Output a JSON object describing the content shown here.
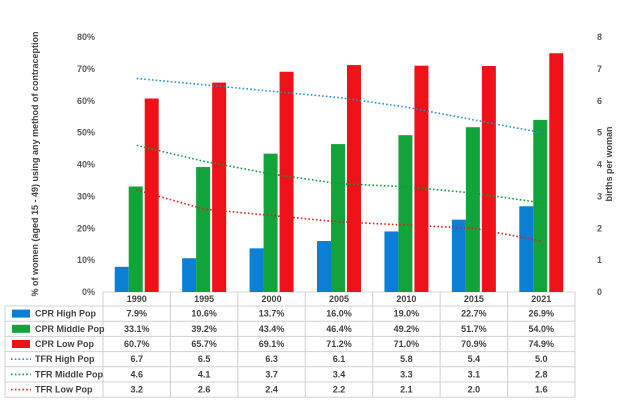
{
  "chart_data": {
    "type": "bar",
    "categories": [
      "1990",
      "1995",
      "2000",
      "2005",
      "2010",
      "2015",
      "2021"
    ],
    "ylabel": "% of women (aged 15 - 49) using any method of contraception",
    "y2label": "births per woman",
    "ylim": [
      0,
      80
    ],
    "y2lim": [
      0,
      8
    ],
    "yticks": [
      "0%",
      "10%",
      "20%",
      "30%",
      "40%",
      "50%",
      "60%",
      "70%",
      "80%"
    ],
    "y2ticks": [
      "0",
      "1",
      "2",
      "3",
      "4",
      "5",
      "6",
      "7",
      "8"
    ],
    "grid": false,
    "legend": "data-table",
    "bar_series": [
      {
        "name": "CPR High Pop",
        "color": "#0b7fd3",
        "values": [
          7.9,
          10.6,
          13.7,
          16.0,
          19.0,
          22.7,
          26.9
        ],
        "labels": [
          "7.9%",
          "10.6%",
          "13.7%",
          "16.0%",
          "19.0%",
          "22.7%",
          "26.9%"
        ]
      },
      {
        "name": "CPR Middle Pop",
        "color": "#12a33a",
        "values": [
          33.1,
          39.2,
          43.4,
          46.4,
          49.2,
          51.7,
          54.0
        ],
        "labels": [
          "33.1%",
          "39.2%",
          "43.4%",
          "46.4%",
          "49.2%",
          "51.7%",
          "54.0%"
        ]
      },
      {
        "name": "CPR Low Pop",
        "color": "#ee1118",
        "values": [
          60.7,
          65.7,
          69.1,
          71.2,
          71.0,
          70.9,
          74.9
        ],
        "labels": [
          "60.7%",
          "65.7%",
          "69.1%",
          "71.2%",
          "71.0%",
          "70.9%",
          "74.9%"
        ]
      }
    ],
    "line_series": [
      {
        "name": "TFR High Pop",
        "color": "#1f8fd6",
        "values": [
          6.7,
          6.5,
          6.3,
          6.1,
          5.8,
          5.4,
          5.0
        ],
        "labels": [
          "6.7",
          "6.5",
          "6.3",
          "6.1",
          "5.8",
          "5.4",
          "5.0"
        ]
      },
      {
        "name": "TFR Middle Pop",
        "color": "#0e9a3c",
        "values": [
          4.6,
          4.1,
          3.7,
          3.4,
          3.3,
          3.1,
          2.8
        ],
        "labels": [
          "4.6",
          "4.1",
          "3.7",
          "3.4",
          "3.3",
          "3.1",
          "2.8"
        ]
      },
      {
        "name": "TFR Low Pop",
        "color": "#e81b1b",
        "values": [
          3.2,
          2.6,
          2.4,
          2.2,
          2.1,
          2.0,
          1.6
        ],
        "labels": [
          "3.2",
          "2.6",
          "2.4",
          "2.2",
          "2.1",
          "2.0",
          "1.6"
        ]
      }
    ]
  }
}
